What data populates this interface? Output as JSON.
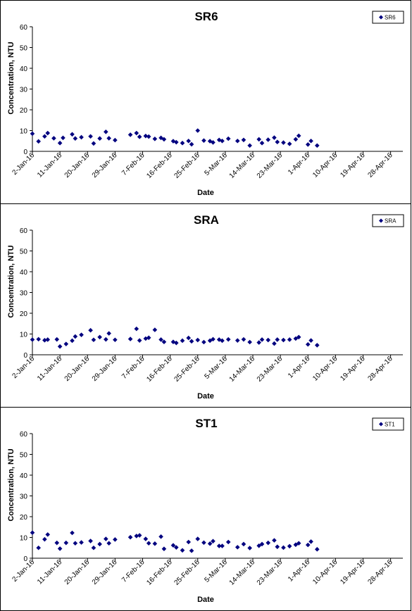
{
  "chart_data": [
    {
      "type": "scatter",
      "title": "SR6",
      "xlabel": "Date",
      "ylabel": "Concentration, NTU",
      "xlim": [
        "2-Jan-16",
        "2-May-16"
      ],
      "ylim": [
        0,
        60
      ],
      "yticks": [
        0,
        10,
        20,
        30,
        40,
        50,
        60
      ],
      "xtick_labels": [
        "2-Jan-16",
        "11-Jan-16",
        "20-Jan-16",
        "29-Jan-16",
        "7-Feb-16",
        "16-Feb-16",
        "25-Feb-16",
        "5-Mar-16",
        "14-Mar-16",
        "23-Mar-16",
        "1-Apr-16",
        "10-Apr-16",
        "19-Apr-16",
        "28-Apr-16"
      ],
      "grid": false,
      "legend": "top-right",
      "color": "#00007f",
      "series": [
        {
          "name": "SR6",
          "points": [
            [
              "2-Jan-16",
              8.5
            ],
            [
              "4-Jan-16",
              4.8
            ],
            [
              "6-Jan-16",
              7.2
            ],
            [
              "7-Jan-16",
              8.8
            ],
            [
              "9-Jan-16",
              6.3
            ],
            [
              "11-Jan-16",
              4.0
            ],
            [
              "12-Jan-16",
              6.5
            ],
            [
              "15-Jan-16",
              8.2
            ],
            [
              "16-Jan-16",
              6.2
            ],
            [
              "18-Jan-16",
              6.8
            ],
            [
              "21-Jan-16",
              7.2
            ],
            [
              "22-Jan-16",
              3.8
            ],
            [
              "24-Jan-16",
              6.2
            ],
            [
              "26-Jan-16",
              9.4
            ],
            [
              "27-Jan-16",
              6.3
            ],
            [
              "29-Jan-16",
              5.4
            ],
            [
              "3-Feb-16",
              8.0
            ],
            [
              "5-Feb-16",
              8.8
            ],
            [
              "6-Feb-16",
              7.0
            ],
            [
              "8-Feb-16",
              7.4
            ],
            [
              "9-Feb-16",
              7.1
            ],
            [
              "11-Feb-16",
              6.0
            ],
            [
              "13-Feb-16",
              6.5
            ],
            [
              "14-Feb-16",
              5.8
            ],
            [
              "17-Feb-16",
              4.9
            ],
            [
              "18-Feb-16",
              4.4
            ],
            [
              "20-Feb-16",
              4.0
            ],
            [
              "22-Feb-16",
              5.0
            ],
            [
              "23-Feb-16",
              3.4
            ],
            [
              "25-Feb-16",
              10.0
            ],
            [
              "27-Feb-16",
              5.2
            ],
            [
              "29-Feb-16",
              4.9
            ],
            [
              "1-Mar-16",
              4.3
            ],
            [
              "3-Mar-16",
              5.5
            ],
            [
              "4-Mar-16",
              5.0
            ],
            [
              "6-Mar-16",
              6.1
            ],
            [
              "9-Mar-16",
              5.0
            ],
            [
              "11-Mar-16",
              5.5
            ],
            [
              "13-Mar-16",
              2.8
            ],
            [
              "16-Mar-16",
              5.8
            ],
            [
              "17-Mar-16",
              4.0
            ],
            [
              "19-Mar-16",
              5.6
            ],
            [
              "21-Mar-16",
              6.6
            ],
            [
              "22-Mar-16",
              4.5
            ],
            [
              "24-Mar-16",
              4.2
            ],
            [
              "26-Mar-16",
              3.6
            ],
            [
              "28-Mar-16",
              5.8
            ],
            [
              "29-Mar-16",
              7.5
            ],
            [
              "1-Apr-16",
              3.3
            ],
            [
              "2-Apr-16",
              5.0
            ],
            [
              "4-Apr-16",
              2.8
            ]
          ]
        }
      ]
    },
    {
      "type": "scatter",
      "title": "SRA",
      "xlabel": "Date",
      "ylabel": "Concentration, NTU",
      "xlim": [
        "2-Jan-16",
        "2-May-16"
      ],
      "ylim": [
        0,
        60
      ],
      "yticks": [
        0,
        10,
        20,
        30,
        40,
        50,
        60
      ],
      "xtick_labels": [
        "2-Jan-16",
        "11-Jan-16",
        "20-Jan-16",
        "29-Jan-16",
        "7-Feb-16",
        "16-Feb-16",
        "25-Feb-16",
        "5-Mar-16",
        "14-Mar-16",
        "23-Mar-16",
        "1-Apr-16",
        "10-Apr-16",
        "19-Apr-16",
        "28-Apr-16"
      ],
      "grid": false,
      "legend": "top-right",
      "color": "#00007f",
      "series": [
        {
          "name": "SRA",
          "points": [
            [
              "2-Jan-16",
              7.3
            ],
            [
              "4-Jan-16",
              7.5
            ],
            [
              "6-Jan-16",
              7.0
            ],
            [
              "7-Jan-16",
              7.3
            ],
            [
              "10-Jan-16",
              7.4
            ],
            [
              "11-Jan-16",
              4.0
            ],
            [
              "13-Jan-16",
              5.2
            ],
            [
              "15-Jan-16",
              6.8
            ],
            [
              "16-Jan-16",
              8.8
            ],
            [
              "18-Jan-16",
              9.6
            ],
            [
              "21-Jan-16",
              11.8
            ],
            [
              "22-Jan-16",
              7.2
            ],
            [
              "24-Jan-16",
              8.5
            ],
            [
              "26-Jan-16",
              7.4
            ],
            [
              "27-Jan-16",
              10.3
            ],
            [
              "29-Jan-16",
              7.2
            ],
            [
              "3-Feb-16",
              7.6
            ],
            [
              "5-Feb-16",
              12.5
            ],
            [
              "6-Feb-16",
              6.9
            ],
            [
              "8-Feb-16",
              7.8
            ],
            [
              "9-Feb-16",
              8.2
            ],
            [
              "11-Feb-16",
              12.0
            ],
            [
              "13-Feb-16",
              7.3
            ],
            [
              "14-Feb-16",
              6.2
            ],
            [
              "17-Feb-16",
              6.2
            ],
            [
              "18-Feb-16",
              5.7
            ],
            [
              "20-Feb-16",
              6.8
            ],
            [
              "22-Feb-16",
              8.1
            ],
            [
              "23-Feb-16",
              6.5
            ],
            [
              "25-Feb-16",
              7.1
            ],
            [
              "27-Feb-16",
              6.1
            ],
            [
              "29-Feb-16",
              6.8
            ],
            [
              "1-Mar-16",
              7.5
            ],
            [
              "3-Mar-16",
              7.3
            ],
            [
              "4-Mar-16",
              6.8
            ],
            [
              "6-Mar-16",
              7.4
            ],
            [
              "9-Mar-16",
              6.9
            ],
            [
              "11-Mar-16",
              7.4
            ],
            [
              "13-Mar-16",
              6.1
            ],
            [
              "16-Mar-16",
              5.9
            ],
            [
              "17-Mar-16",
              7.3
            ],
            [
              "19-Mar-16",
              7.1
            ],
            [
              "21-Mar-16",
              5.4
            ],
            [
              "22-Mar-16",
              7.3
            ],
            [
              "24-Mar-16",
              7.1
            ],
            [
              "26-Mar-16",
              7.3
            ],
            [
              "28-Mar-16",
              7.8
            ],
            [
              "29-Mar-16",
              8.5
            ],
            [
              "1-Apr-16",
              5.0
            ],
            [
              "2-Apr-16",
              6.9
            ],
            [
              "4-Apr-16",
              4.6
            ]
          ]
        }
      ]
    },
    {
      "type": "scatter",
      "title": "ST1",
      "xlabel": "Date",
      "ylabel": "Concentration, NTU",
      "xlim": [
        "2-Jan-16",
        "2-May-16"
      ],
      "ylim": [
        0,
        60
      ],
      "yticks": [
        0,
        10,
        20,
        30,
        40,
        50,
        60
      ],
      "xtick_labels": [
        "2-Jan-16",
        "11-Jan-16",
        "20-Jan-16",
        "29-Jan-16",
        "7-Feb-16",
        "16-Feb-16",
        "25-Feb-16",
        "5-Mar-16",
        "14-Mar-16",
        "23-Mar-16",
        "1-Apr-16",
        "10-Apr-16",
        "19-Apr-16",
        "28-Apr-16"
      ],
      "grid": false,
      "legend": "top-right",
      "color": "#00007f",
      "series": [
        {
          "name": "ST1",
          "points": [
            [
              "2-Jan-16",
              12.3
            ],
            [
              "4-Jan-16",
              5.0
            ],
            [
              "6-Jan-16",
              9.1
            ],
            [
              "7-Jan-16",
              11.4
            ],
            [
              "10-Jan-16",
              7.4
            ],
            [
              "11-Jan-16",
              4.6
            ],
            [
              "13-Jan-16",
              7.4
            ],
            [
              "15-Jan-16",
              12.2
            ],
            [
              "16-Jan-16",
              7.2
            ],
            [
              "18-Jan-16",
              7.6
            ],
            [
              "21-Jan-16",
              8.3
            ],
            [
              "22-Jan-16",
              5.0
            ],
            [
              "24-Jan-16",
              6.8
            ],
            [
              "26-Jan-16",
              9.3
            ],
            [
              "27-Jan-16",
              7.2
            ],
            [
              "29-Jan-16",
              9.0
            ],
            [
              "3-Feb-16",
              10.1
            ],
            [
              "5-Feb-16",
              10.7
            ],
            [
              "6-Feb-16",
              11.0
            ],
            [
              "8-Feb-16",
              9.3
            ],
            [
              "9-Feb-16",
              7.2
            ],
            [
              "11-Feb-16",
              7.0
            ],
            [
              "13-Feb-16",
              10.4
            ],
            [
              "14-Feb-16",
              4.5
            ],
            [
              "17-Feb-16",
              6.2
            ],
            [
              "18-Feb-16",
              5.2
            ],
            [
              "20-Feb-16",
              3.8
            ],
            [
              "22-Feb-16",
              7.8
            ],
            [
              "23-Feb-16",
              3.6
            ],
            [
              "25-Feb-16",
              9.3
            ],
            [
              "27-Feb-16",
              7.5
            ],
            [
              "29-Feb-16",
              7.0
            ],
            [
              "1-Mar-16",
              8.2
            ],
            [
              "3-Mar-16",
              5.9
            ],
            [
              "4-Mar-16",
              5.9
            ],
            [
              "6-Mar-16",
              7.8
            ],
            [
              "9-Mar-16",
              5.3
            ],
            [
              "11-Mar-16",
              6.8
            ],
            [
              "13-Mar-16",
              4.9
            ],
            [
              "16-Mar-16",
              6.0
            ],
            [
              "17-Mar-16",
              6.8
            ],
            [
              "19-Mar-16",
              7.4
            ],
            [
              "21-Mar-16",
              8.6
            ],
            [
              "22-Mar-16",
              5.5
            ],
            [
              "24-Mar-16",
              5.1
            ],
            [
              "26-Mar-16",
              5.8
            ],
            [
              "28-Mar-16",
              6.5
            ],
            [
              "29-Mar-16",
              7.2
            ],
            [
              "1-Apr-16",
              6.4
            ],
            [
              "2-Apr-16",
              8.0
            ],
            [
              "4-Apr-16",
              4.3
            ]
          ]
        }
      ]
    }
  ]
}
